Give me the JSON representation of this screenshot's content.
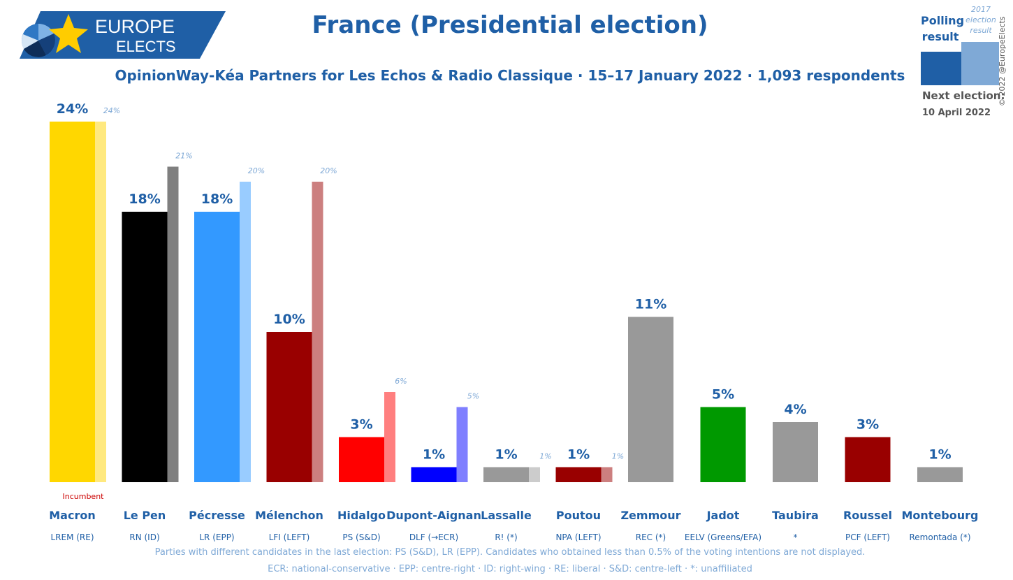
{
  "brand": {
    "line1": "EUROPE",
    "line2": "ELECTS"
  },
  "title": "France (Presidential election)",
  "subtitle": "OpinionWay-Kéa Partners for Les Echos & Radio Classique · 15–17 January 2022 · 1,093 respondents",
  "legend": {
    "polling_label": "Polling result",
    "previous_label": "2017 election result",
    "next_election_label": "Next election:",
    "next_election_date": "10 April 2022",
    "polling_color": "#1f5fa6",
    "previous_color": "#7fa9d6"
  },
  "copyright": "© 2022 @EuropeElects",
  "incumbent_label": "Incumbent",
  "chart_data": {
    "type": "bar",
    "ylim": [
      0,
      25
    ],
    "categories": [
      "Macron",
      "Le Pen",
      "Pécresse",
      "Mélenchon",
      "Hidalgo",
      "Dupont-Aignan",
      "Lassalle",
      "Poutou",
      "Zemmour",
      "Jadot",
      "Taubira",
      "Roussel",
      "Montebourg"
    ],
    "parties": [
      "LREM (RE)",
      "RN (ID)",
      "LR (EPP)",
      "LFI (LEFT)",
      "PS (S&D)",
      "DLF (→ECR)",
      "R! (*)",
      "NPA (LEFT)",
      "REC (*)",
      "EELV (Greens/EFA)",
      "*",
      "PCF (LEFT)",
      "Remontada (*)"
    ],
    "series": [
      {
        "name": "Polling result",
        "values": [
          24,
          18,
          18,
          10,
          3,
          1,
          1,
          1,
          11,
          5,
          4,
          3,
          1
        ],
        "labels": [
          "24%",
          "18%",
          "18%",
          "10%",
          "3%",
          "1%",
          "1%",
          "1%",
          "11%",
          "5%",
          "4%",
          "3%",
          "1%"
        ]
      },
      {
        "name": "2017 election result",
        "values": [
          24,
          21,
          20,
          20,
          6,
          5,
          1,
          1,
          null,
          null,
          null,
          null,
          null
        ],
        "labels": [
          "24%",
          "21%",
          "20%",
          "20%",
          "6%",
          "5%",
          "1%",
          "1%",
          null,
          null,
          null,
          null,
          null
        ]
      }
    ],
    "colors": [
      "#ffd700",
      "#000000",
      "#3399ff",
      "#990000",
      "#ff0000",
      "#0000ff",
      "#999999",
      "#990000",
      "#999999",
      "#009900",
      "#999999",
      "#990000",
      "#999999"
    ],
    "previous_colors": [
      "#ffe97f",
      "#7f7f7f",
      "#99ccff",
      "#cc7f7f",
      "#ff7f7f",
      "#7f7fff",
      "#cccccc",
      "#cc7f7f",
      null,
      null,
      null,
      null,
      null
    ],
    "incumbent_index": 0
  },
  "footnotes": {
    "line1": "Parties with different candidates in the last election: PS (S&D), LR (EPP). Candidates who obtained less than 0.5% of the voting intentions are not displayed.",
    "line2": "ECR: national-conservative · EPP: centre-right · ID: right-wing · RE: liberal · S&D: centre-left · *: unaffiliated"
  }
}
